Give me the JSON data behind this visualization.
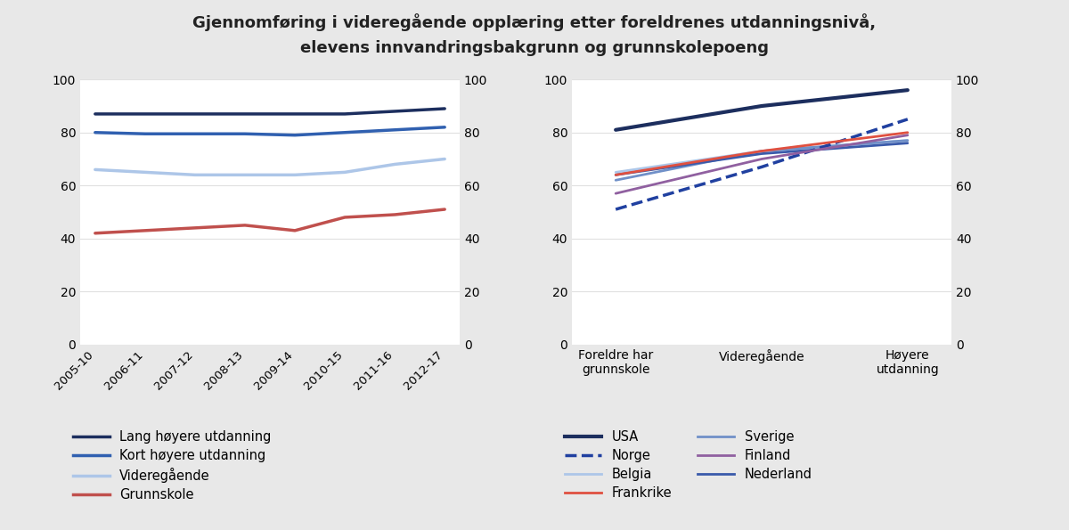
{
  "title_line1": "Gjennomføring i videregående opplæring etter foreldrenes utdanningsnivå,",
  "title_line2": "elevens innvandringsbakgrunn og grunnskolepoeng",
  "left_xticks": [
    "2005-10",
    "2006-11",
    "2007-12",
    "2008-13",
    "2009-14",
    "2010-15",
    "2011-16",
    "2012-17"
  ],
  "left_series": {
    "Lang høyere utdanning": {
      "color": "#1c2e5e",
      "values": [
        87,
        87,
        87,
        87,
        87,
        87,
        88,
        89
      ],
      "linewidth": 2.5
    },
    "Kort høyere utdanning": {
      "color": "#3060b0",
      "values": [
        80,
        79.5,
        79.5,
        79.5,
        79,
        80,
        81,
        82
      ],
      "linewidth": 2.5
    },
    "Videregående": {
      "color": "#adc6e8",
      "values": [
        66,
        65,
        64,
        64,
        64,
        65,
        68,
        70
      ],
      "linewidth": 2.5
    },
    "Grunnskole": {
      "color": "#c0504d",
      "values": [
        42,
        43,
        44,
        45,
        43,
        48,
        49,
        51
      ],
      "linewidth": 2.5
    }
  },
  "right_xticks": [
    "Foreldre har\ngrunnskole",
    "Videregående",
    "Høyere\nutdanning"
  ],
  "right_series": {
    "USA": {
      "color": "#1c2e5e",
      "values": [
        81,
        90,
        96
      ],
      "linestyle": "solid",
      "linewidth": 3.0
    },
    "Belgia": {
      "color": "#adc6e8",
      "values": [
        65,
        73,
        77
      ],
      "linestyle": "solid",
      "linewidth": 2.0
    },
    "Sverige": {
      "color": "#7090c8",
      "values": [
        62,
        73,
        77
      ],
      "linestyle": "solid",
      "linewidth": 2.0
    },
    "Nederland": {
      "color": "#3a5aaa",
      "values": [
        64,
        72,
        76
      ],
      "linestyle": "solid",
      "linewidth": 2.0
    },
    "Norge": {
      "color": "#2040a0",
      "values": [
        51,
        67,
        85
      ],
      "linestyle": "dashed",
      "linewidth": 2.5
    },
    "Frankrike": {
      "color": "#e05040",
      "values": [
        64,
        73,
        80
      ],
      "linestyle": "solid",
      "linewidth": 2.0
    },
    "Finland": {
      "color": "#9060a0",
      "values": [
        57,
        70,
        79
      ],
      "linestyle": "solid",
      "linewidth": 2.0
    }
  },
  "ylim": [
    0,
    100
  ],
  "yticks": [
    0,
    20,
    40,
    60,
    80,
    100
  ],
  "background_color": "#e8e8e8",
  "plot_bg_color": "#ffffff",
  "title_fontsize": 13,
  "tick_fontsize": 10,
  "legend_fontsize": 10.5,
  "left_legend_col1": [
    "Lang høyere utdanning",
    "Kort høyere utdanning",
    "Videregående",
    "Grunnskole"
  ],
  "right_legend_col1": [
    "USA",
    "Belgia",
    "Sverige",
    "Nederland"
  ],
  "right_legend_col2": [
    "Norge",
    "Frankrike",
    "Finland"
  ]
}
